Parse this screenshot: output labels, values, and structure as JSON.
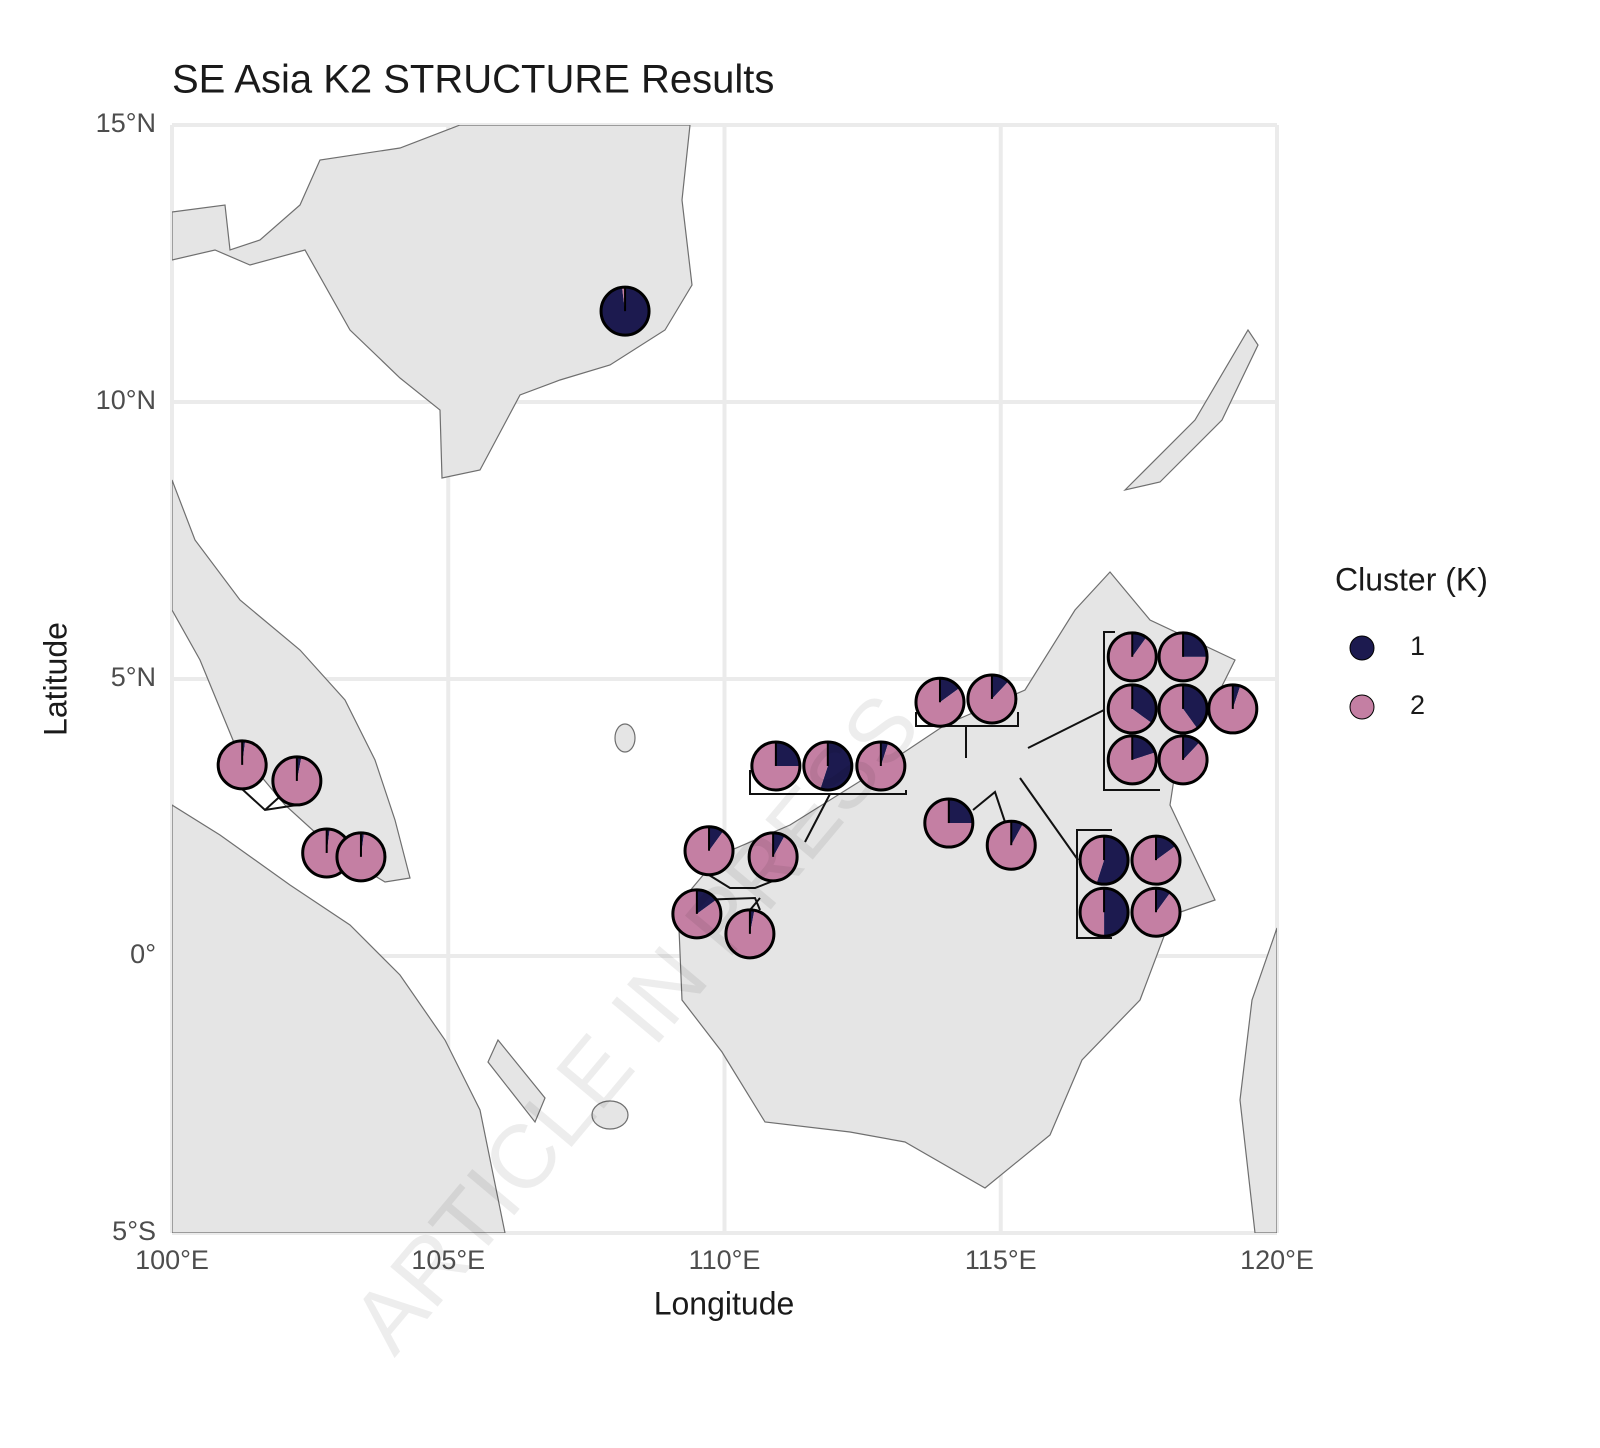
{
  "chart_data": {
    "type": "pie-map",
    "title": "SE Asia K2 STRUCTURE Results",
    "x_label": "Longitude",
    "y_label": "Latitude",
    "watermark": "ARTICLE IN PRESS",
    "xlim": [
      100,
      120
    ],
    "ylim": [
      -5,
      15
    ],
    "xticks": [
      {
        "value": 100,
        "label": "100°E"
      },
      {
        "value": 105,
        "label": "105°E"
      },
      {
        "value": 110,
        "label": "110°E"
      },
      {
        "value": 115,
        "label": "115°E"
      },
      {
        "value": 120,
        "label": "120°E"
      }
    ],
    "yticks": [
      {
        "value": -5,
        "label": "5°S"
      },
      {
        "value": 0,
        "label": "0°"
      },
      {
        "value": 5,
        "label": "5°N"
      },
      {
        "value": 10,
        "label": "10°N"
      },
      {
        "value": 15,
        "label": "15°N"
      }
    ],
    "grid": true,
    "legend": {
      "title": "Cluster (K)",
      "position": "right",
      "items": [
        {
          "label": "1",
          "color": "#1c1a4f"
        },
        {
          "label": "2",
          "color": "#c47fa3"
        }
      ]
    },
    "pies": [
      {
        "lon": 108.2,
        "lat": 11.64,
        "values": [
          98,
          2
        ]
      },
      {
        "lon": 101.27,
        "lat": 3.45,
        "values": [
          2,
          98
        ]
      },
      {
        "lon": 102.26,
        "lat": 3.16,
        "values": [
          3,
          97
        ]
      },
      {
        "lon": 102.8,
        "lat": 1.86,
        "values": [
          2,
          98
        ]
      },
      {
        "lon": 103.42,
        "lat": 1.79,
        "values": [
          2,
          98
        ]
      },
      {
        "lon": 109.72,
        "lat": 1.9,
        "values": [
          10,
          90
        ]
      },
      {
        "lon": 110.88,
        "lat": 1.79,
        "values": [
          8,
          92
        ]
      },
      {
        "lon": 109.5,
        "lat": 0.76,
        "values": [
          15,
          85
        ]
      },
      {
        "lon": 110.46,
        "lat": 0.4,
        "values": [
          3,
          97
        ]
      },
      {
        "lon": 110.93,
        "lat": 3.43,
        "values": [
          25,
          75
        ]
      },
      {
        "lon": 111.87,
        "lat": 3.43,
        "values": [
          55,
          45
        ]
      },
      {
        "lon": 112.83,
        "lat": 3.43,
        "values": [
          5,
          95
        ]
      },
      {
        "lon": 113.9,
        "lat": 4.58,
        "values": [
          15,
          85
        ]
      },
      {
        "lon": 114.84,
        "lat": 4.64,
        "values": [
          12,
          88
        ]
      },
      {
        "lon": 114.06,
        "lat": 2.4,
        "values": [
          25,
          75
        ]
      },
      {
        "lon": 115.19,
        "lat": 2.0,
        "values": [
          8,
          92
        ]
      },
      {
        "lon": 117.38,
        "lat": 5.4,
        "values": [
          10,
          90
        ]
      },
      {
        "lon": 118.3,
        "lat": 5.4,
        "values": [
          25,
          75
        ]
      },
      {
        "lon": 117.38,
        "lat": 4.46,
        "values": [
          35,
          65
        ]
      },
      {
        "lon": 118.3,
        "lat": 4.46,
        "values": [
          40,
          60
        ]
      },
      {
        "lon": 119.2,
        "lat": 4.46,
        "values": [
          5,
          95
        ]
      },
      {
        "lon": 117.38,
        "lat": 3.54,
        "values": [
          20,
          80
        ]
      },
      {
        "lon": 118.3,
        "lat": 3.54,
        "values": [
          12,
          88
        ]
      },
      {
        "lon": 116.87,
        "lat": 1.73,
        "values": [
          55,
          45
        ]
      },
      {
        "lon": 117.81,
        "lat": 1.73,
        "values": [
          15,
          85
        ]
      },
      {
        "lon": 116.87,
        "lat": 0.79,
        "values": [
          50,
          50
        ]
      },
      {
        "lon": 117.81,
        "lat": 0.79,
        "values": [
          10,
          90
        ]
      }
    ]
  }
}
